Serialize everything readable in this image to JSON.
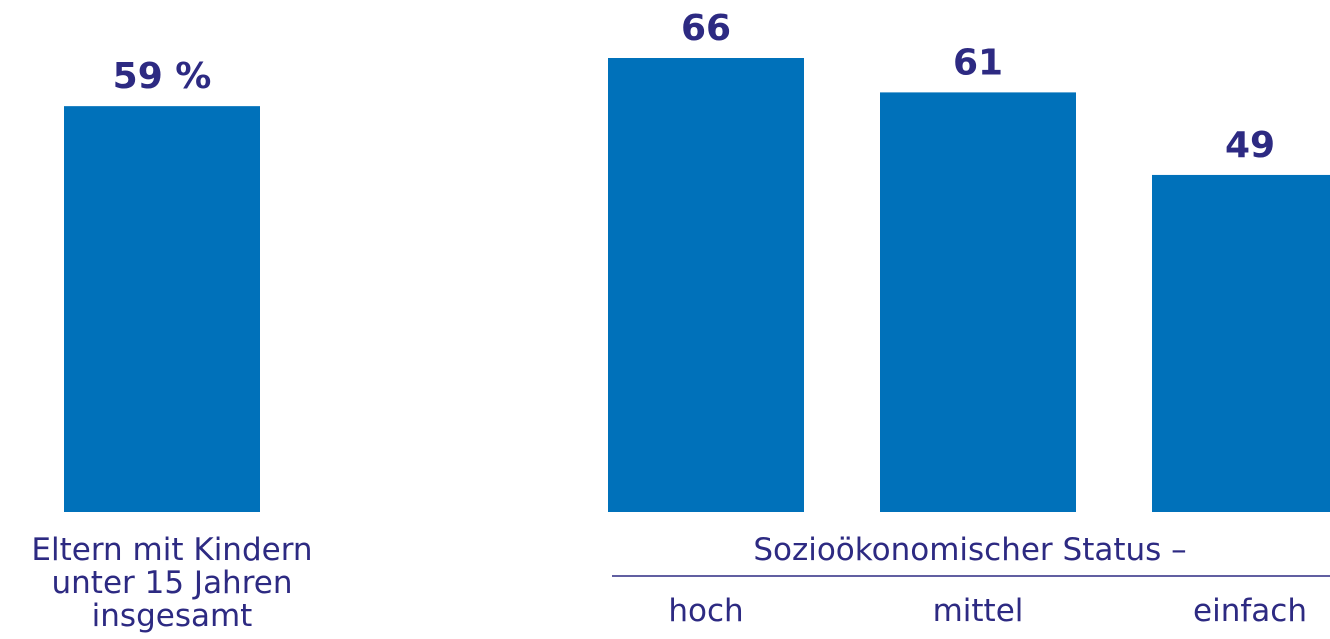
{
  "chart_data": [
    {
      "type": "bar",
      "categories": [
        "Eltern mit Kindern unter 15 Jahren insgesamt"
      ],
      "category_label_lines": [
        "Eltern mit Kindern",
        "unter 15 Jahren",
        "insgesamt"
      ],
      "values": [
        59
      ],
      "value_labels": [
        "59 %"
      ],
      "title": "",
      "xlabel": "",
      "ylabel": "",
      "ylim": [
        0,
        66
      ],
      "grid": false
    },
    {
      "type": "bar",
      "group_label": "Sozioökonomischer Status –",
      "categories": [
        "hoch",
        "mittel",
        "einfach"
      ],
      "values": [
        66,
        61,
        49
      ],
      "value_labels": [
        "66",
        "61",
        "49"
      ],
      "title": "",
      "xlabel": "",
      "ylabel": "",
      "ylim": [
        0,
        66
      ],
      "grid": false
    }
  ],
  "colors": {
    "bar": "#0071ba",
    "value_text": "#2d2a82",
    "label_text": "#2d2a82",
    "divider": "#2d2a82"
  }
}
